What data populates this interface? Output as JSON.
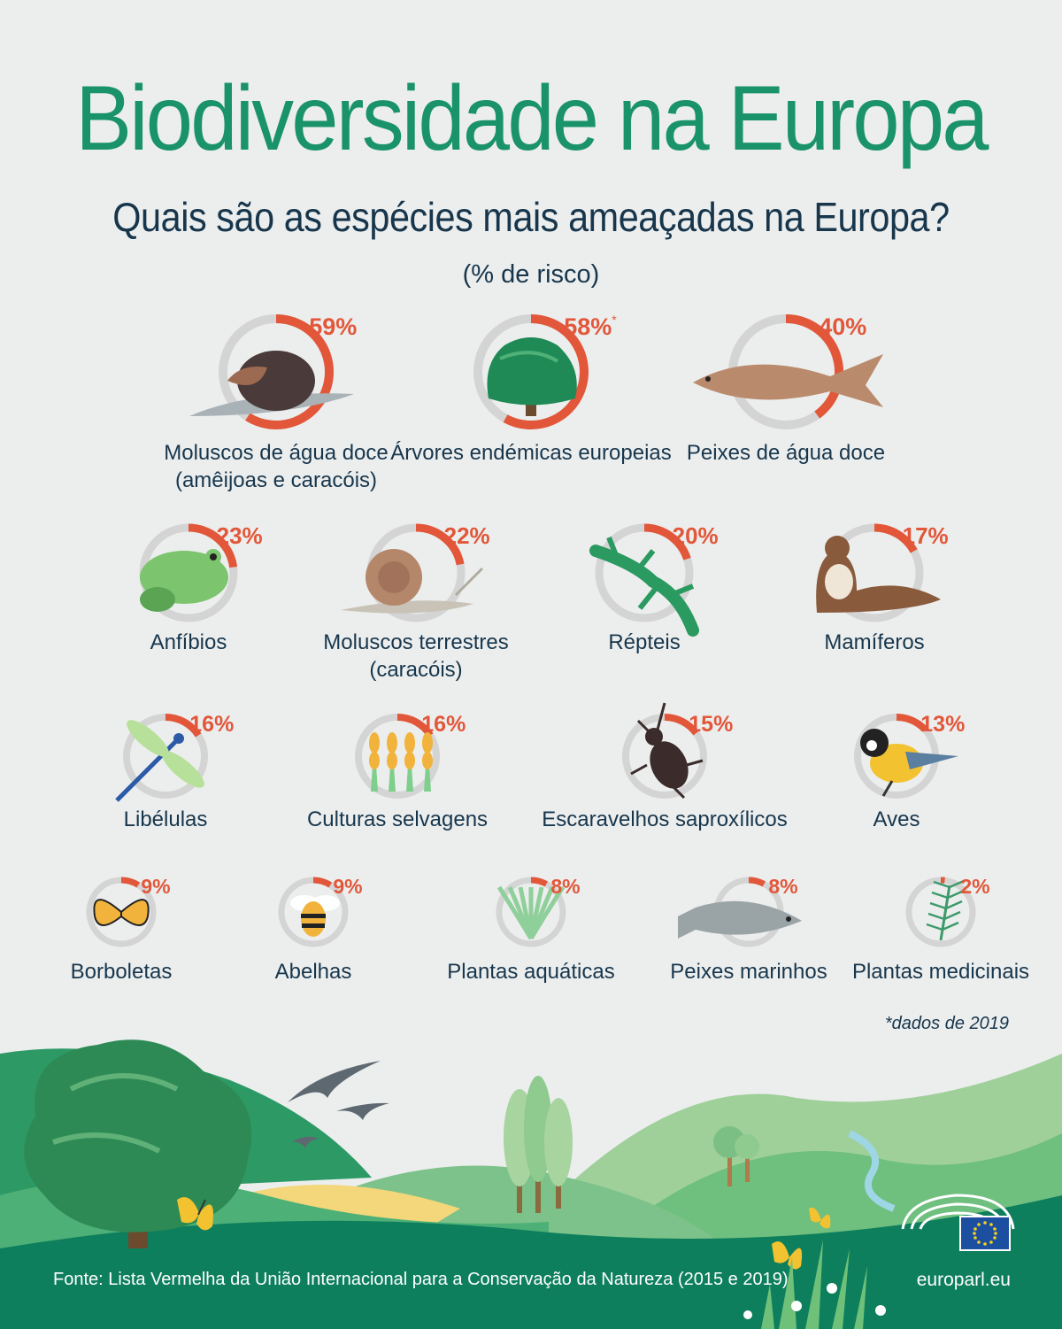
{
  "header": {
    "title": "Biodiversidade na Europa",
    "subtitle": "Quais são as espécies mais ameaçadas na Europa?",
    "unit": "(% de risco)"
  },
  "colors": {
    "title": "#1a936a",
    "text": "#17364c",
    "risk": "#e2573a",
    "ring_bg": "#d4d4d4",
    "landscape_dark": "#0e7f5c"
  },
  "chart_data": {
    "type": "donut-grid",
    "title": "Biodiversidade na Europa",
    "subtitle": "Quais são as espécies mais ameaçadas na Europa?",
    "unit": "(% de risco)",
    "items": [
      {
        "label": "Moluscos de água doce",
        "label2": "(amêijoas e caracóis)",
        "value": 59,
        "icon": "freshwater-mussel-snail-icon"
      },
      {
        "label": "Árvores endémicas europeias",
        "label2": "",
        "value": 58,
        "note": "*",
        "icon": "tree-icon"
      },
      {
        "label": "Peixes de água doce",
        "label2": "",
        "value": 40,
        "icon": "freshwater-fish-icon"
      },
      {
        "label": "Anfíbios",
        "label2": "",
        "value": 23,
        "icon": "frog-icon"
      },
      {
        "label": "Moluscos terrestres",
        "label2": "(caracóis)",
        "value": 22,
        "icon": "land-snail-icon"
      },
      {
        "label": "Répteis",
        "label2": "",
        "value": 20,
        "icon": "lizard-icon"
      },
      {
        "label": "Mamíferos",
        "label2": "",
        "value": 17,
        "icon": "otter-icon"
      },
      {
        "label": "Libélulas",
        "label2": "",
        "value": 16,
        "icon": "dragonfly-icon"
      },
      {
        "label": "Culturas selvagens",
        "label2": "",
        "value": 16,
        "icon": "wild-crops-icon"
      },
      {
        "label": "Escaravelhos saproxílicos",
        "label2": "",
        "value": 15,
        "icon": "beetle-icon"
      },
      {
        "label": "Aves",
        "label2": "",
        "value": 13,
        "icon": "bird-icon"
      },
      {
        "label": "Borboletas",
        "label2": "",
        "value": 9,
        "icon": "butterfly-icon"
      },
      {
        "label": "Abelhas",
        "label2": "",
        "value": 9,
        "icon": "bee-icon"
      },
      {
        "label": "Plantas aquáticas",
        "label2": "",
        "value": 8,
        "icon": "aquatic-plant-icon"
      },
      {
        "label": "Peixes marinhos",
        "label2": "",
        "value": 8,
        "icon": "marine-fish-icon"
      },
      {
        "label": "Plantas medicinais",
        "label2": "",
        "value": 2,
        "icon": "medicinal-plant-icon"
      }
    ]
  },
  "footnote": "*dados de 2019",
  "footer": {
    "source": "Fonte: Lista Vermelha da União Internacional para a Conservação da Natureza (2015 e 2019)",
    "site": "europarl.eu"
  }
}
